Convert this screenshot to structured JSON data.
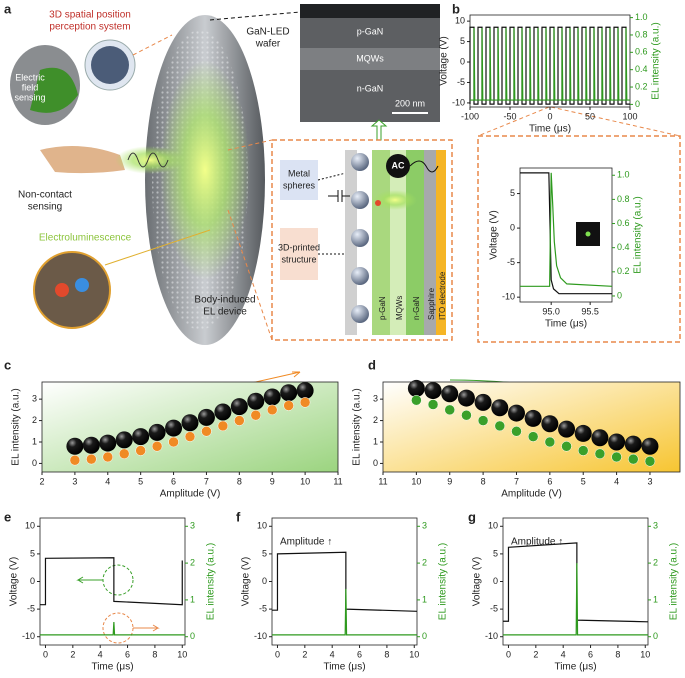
{
  "figure": {
    "panel_labels": [
      "a",
      "b",
      "c",
      "d",
      "e",
      "f",
      "g"
    ],
    "perception_title": [
      "3D spatial position",
      "perception system"
    ],
    "electric_field": [
      "Electric",
      "field",
      "sensing"
    ],
    "non_contact": [
      "Non-contact",
      "sensing"
    ],
    "electroluminescence": "Electroluminescence",
    "device": [
      "Body-induced",
      "EL device"
    ],
    "wafer": [
      "GaN-LED",
      "wafer"
    ],
    "sem_layers": [
      "p-GaN",
      "MQWs",
      "n-GaN"
    ],
    "scale_bar": "200 nm",
    "metal_spheres": [
      "Metal",
      "spheres"
    ],
    "printed_structure": [
      "3D-printed",
      "structure"
    ],
    "ac": "AC",
    "stack_layers": [
      "p-GaN",
      "MQWs",
      "n-GaN",
      "Sapphire",
      "ITO electrode"
    ]
  },
  "chart_data": [
    {
      "type": "line",
      "xlabel": "Time (μs)",
      "ylabel": "Voltage (V)",
      "y2label": "EL intensity (a.u.)",
      "xlim": [
        -100,
        100
      ],
      "xticks": [
        -100,
        -50,
        0,
        50,
        100
      ],
      "ylim": [
        -11,
        11.5
      ],
      "yticks": [
        -10,
        -5,
        0,
        5,
        10
      ],
      "y2lim": [
        -0.03,
        1.03
      ],
      "y2ticks": [
        0,
        0.2,
        0.4,
        0.6,
        0.8,
        {
          "value": 1,
          "label": "1.0"
        }
      ],
      "series": [
        {
          "color": "#111111",
          "x": [
            -100,
            -100,
            -95,
            -95,
            -90,
            -90,
            -85,
            -85,
            -80,
            -80,
            -75,
            -75,
            -70,
            -70,
            -65,
            -65,
            -60,
            -60,
            -55,
            -55,
            -50,
            -50,
            -45,
            -45,
            -40,
            -40,
            -35,
            -35,
            -30,
            -30,
            -25,
            -25,
            -20,
            -20,
            -15,
            -15,
            -10,
            -10,
            -5,
            -5,
            0,
            0,
            5,
            5,
            10,
            10,
            15,
            15,
            20,
            20,
            25,
            25,
            30,
            30,
            35,
            35,
            40,
            40,
            45,
            45,
            50,
            50,
            55,
            55,
            60,
            60,
            65,
            65,
            70,
            70,
            75,
            75,
            80,
            80,
            85,
            85,
            90,
            90,
            95,
            95,
            100
          ],
          "values": [
            -10.3,
            8.5,
            8.5,
            -10.3,
            -10.3,
            8.5,
            8.5,
            -10.3,
            -10.3,
            8.5,
            8.5,
            -10.3,
            -10.3,
            8.5,
            8.5,
            -10.3,
            -10.3,
            8.5,
            8.5,
            -10.3,
            -10.3,
            8.5,
            8.5,
            -10.3,
            -10.3,
            8.5,
            8.5,
            -10.3,
            -10.3,
            8.5,
            8.5,
            -10.3,
            -10.3,
            8.5,
            8.5,
            -10.3,
            -10.3,
            8.5,
            8.5,
            -10.3,
            -10.3,
            8.5,
            8.5,
            -10.3,
            -10.3,
            8.5,
            8.5,
            -10.3,
            -10.3,
            8.5,
            8.5,
            -10.3,
            -10.3,
            8.5,
            8.5,
            -10.3,
            -10.3,
            8.5,
            8.5,
            -10.3,
            -10.3,
            8.5,
            8.5,
            -10.3,
            -10.3,
            8.5,
            8.5,
            -10.3,
            -10.3,
            8.5,
            8.5,
            -10.3,
            -10.3,
            8.5,
            8.5,
            -10.3,
            -10.3,
            8.5,
            8.5,
            -10.3,
            -10.3
          ]
        },
        {
          "color": "#2e9a1e",
          "axis": "y2",
          "x": [
            -100,
            -95,
            -95,
            -94,
            -85,
            -85,
            -84,
            -75,
            -75,
            -74,
            -65,
            -65,
            -64,
            -55,
            -55,
            -54,
            -45,
            -45,
            -44,
            -35,
            -35,
            -34,
            -25,
            -25,
            -24,
            -15,
            -15,
            -14,
            -5,
            -5,
            -4,
            5,
            5,
            6,
            15,
            15,
            16,
            25,
            25,
            26,
            35,
            35,
            36,
            45,
            45,
            46,
            55,
            55,
            56,
            65,
            65,
            66,
            75,
            75,
            76,
            85,
            85,
            86,
            95,
            95,
            96,
            100
          ],
          "values": [
            0.05,
            0.05,
            0.88,
            0.05,
            0.05,
            0.88,
            0.05,
            0.05,
            0.88,
            0.05,
            0.05,
            0.88,
            0.05,
            0.05,
            0.88,
            0.05,
            0.05,
            0.88,
            0.05,
            0.05,
            0.88,
            0.05,
            0.05,
            0.88,
            0.05,
            0.05,
            0.88,
            0.05,
            0.05,
            0.88,
            0.05,
            0.05,
            0.88,
            0.05,
            0.05,
            0.88,
            0.05,
            0.05,
            0.88,
            0.05,
            0.05,
            0.88,
            0.05,
            0.05,
            0.88,
            0.05,
            0.05,
            0.88,
            0.05,
            0.05,
            0.88,
            0.05,
            0.05,
            0.88,
            0.05,
            0.05,
            0.88,
            0.05,
            0.05,
            0.88,
            0.05,
            0.05
          ]
        }
      ]
    },
    {
      "type": "line",
      "xlabel": "Time (μs)",
      "ylabel": "Voltage (V)",
      "y2label": "EL intensity (a.u.)",
      "xlim": [
        94.6,
        95.78
      ],
      "xticks": [
        {
          "value": 95,
          "label": "95.0"
        },
        95.5
      ],
      "ylim": [
        -10.7,
        8.7
      ],
      "yticks": [
        -10,
        -5,
        0,
        5
      ],
      "y2lim": [
        -0.05,
        1.06
      ],
      "y2ticks": [
        0,
        0.2,
        0.4,
        0.6,
        0.8,
        {
          "value": 1,
          "label": "1.0"
        }
      ],
      "series": [
        {
          "color": "#111111",
          "x": [
            94.6,
            94.97,
            95.0,
            95.03,
            95.1,
            95.78
          ],
          "values": [
            8.0,
            8.0,
            -7.5,
            -8.8,
            -9.5,
            -9.5
          ]
        },
        {
          "color": "#2e9a1e",
          "axis": "y2",
          "x": [
            94.6,
            94.98,
            95.0,
            95.02,
            95.04,
            95.07,
            95.12,
            95.2,
            95.78
          ],
          "values": [
            0.08,
            0.08,
            1.02,
            0.75,
            0.45,
            0.25,
            0.15,
            0.1,
            0.08
          ]
        }
      ]
    },
    {
      "type": "scatter",
      "xlabel": "Amplitude (V)",
      "ylabel": "EL intensity (a.u.)",
      "background": "#9bd47f",
      "xlim": [
        2,
        11
      ],
      "xticks": [
        2,
        3,
        4,
        5,
        6,
        7,
        8,
        9,
        10,
        11
      ],
      "ylim": [
        -0.4,
        3.8
      ],
      "yticks": [
        0,
        1,
        2,
        3
      ],
      "x": [
        3,
        3.5,
        4,
        4.5,
        5,
        5.5,
        6,
        6.5,
        7,
        7.5,
        8,
        8.5,
        9,
        9.5,
        10
      ],
      "series": [
        {
          "color": "#111111",
          "marker": "sphere",
          "values": [
            0.8,
            0.85,
            0.95,
            1.1,
            1.25,
            1.45,
            1.65,
            1.9,
            2.15,
            2.4,
            2.65,
            2.9,
            3.1,
            3.3,
            3.4
          ]
        },
        {
          "color": "#f08a24",
          "marker": "dot",
          "values": [
            0.15,
            0.2,
            0.3,
            0.45,
            0.6,
            0.8,
            1.0,
            1.25,
            1.5,
            1.75,
            2.0,
            2.25,
            2.5,
            2.7,
            2.85
          ]
        }
      ]
    },
    {
      "type": "scatter",
      "xlabel": "Amplitude (V)",
      "ylabel": "EL intensity (a.u.)",
      "background": "#f7c531",
      "xlim": [
        11,
        2.1
      ],
      "xticks": [
        11,
        10,
        9,
        8,
        7,
        6,
        5,
        4,
        3
      ],
      "ylim": [
        -0.4,
        3.8
      ],
      "yticks": [
        0,
        1,
        2,
        3
      ],
      "x": [
        10,
        9.5,
        9,
        8.5,
        8,
        7.5,
        7,
        6.5,
        6,
        5.5,
        5,
        4.5,
        4,
        3.5,
        3
      ],
      "series": [
        {
          "color": "#111111",
          "marker": "sphere",
          "values": [
            3.5,
            3.4,
            3.25,
            3.05,
            2.85,
            2.6,
            2.35,
            2.1,
            1.85,
            1.6,
            1.4,
            1.2,
            1.0,
            0.9,
            0.8
          ]
        },
        {
          "color": "#3aa02a",
          "marker": "dot",
          "values": [
            2.95,
            2.75,
            2.5,
            2.25,
            2.0,
            1.75,
            1.5,
            1.25,
            1.0,
            0.8,
            0.6,
            0.45,
            0.3,
            0.2,
            0.1
          ]
        }
      ]
    },
    {
      "type": "line",
      "xlabel": "Time (μs)",
      "ylabel": "Voltage (V)",
      "y2label": "EL intensity (a.u.)",
      "xlim": [
        -0.4,
        10.2
      ],
      "xticks": [
        0,
        2,
        4,
        6,
        8,
        10
      ],
      "ylim": [
        -11.5,
        11.5
      ],
      "yticks": [
        -10,
        -5,
        0,
        5,
        10
      ],
      "y2lim": [
        -0.225,
        3.225
      ],
      "y2ticks": [
        0,
        1,
        2,
        3
      ],
      "series": [
        {
          "color": "#111111",
          "x": [
            -0.4,
            0,
            0,
            5,
            5,
            10,
            10
          ],
          "values": [
            -4.2,
            -4.2,
            4.2,
            4.3,
            -3.6,
            -4.2,
            3.8
          ]
        },
        {
          "color": "#2e9a1e",
          "axis": "y2",
          "x": [
            -0.4,
            4.95,
            5,
            5.05,
            10.2
          ],
          "values": [
            0.05,
            0.05,
            0.4,
            0.05,
            0.05
          ]
        }
      ]
    },
    {
      "type": "line",
      "xlabel": "Time (μs)",
      "ylabel": "Voltage (V)",
      "y2label": "EL intensity (a.u.)",
      "annotation": "Amplitude ↑",
      "xlim": [
        -0.4,
        10.2
      ],
      "xticks": [
        0,
        2,
        4,
        6,
        8,
        10
      ],
      "ylim": [
        -11.5,
        11.5
      ],
      "yticks": [
        -10,
        -5,
        0,
        5,
        10
      ],
      "y2lim": [
        -0.225,
        3.225
      ],
      "y2ticks": [
        0,
        1,
        2,
        3
      ],
      "series": [
        {
          "color": "#111111",
          "x": [
            -0.4,
            0,
            0,
            5,
            5,
            10.2
          ],
          "values": [
            -5.2,
            -5.2,
            5,
            5.3,
            -5,
            -5.4
          ]
        },
        {
          "color": "#2e9a1e",
          "axis": "y2",
          "x": [
            -0.4,
            4.95,
            5,
            5.05,
            10.2
          ],
          "values": [
            0.05,
            0.05,
            1.3,
            0.05,
            0.05
          ]
        }
      ]
    },
    {
      "type": "line",
      "xlabel": "Time (μs)",
      "ylabel": "Voltage (V)",
      "y2label": "EL intensity (a.u.)",
      "annotation": "Amplitude ↑",
      "xlim": [
        -0.4,
        10.2
      ],
      "xticks": [
        0,
        2,
        4,
        6,
        8,
        10
      ],
      "ylim": [
        -11.5,
        11.5
      ],
      "yticks": [
        -10,
        -5,
        0,
        5,
        10
      ],
      "y2lim": [
        -0.225,
        3.225
      ],
      "y2ticks": [
        0,
        1,
        2,
        3
      ],
      "series": [
        {
          "color": "#111111",
          "x": [
            -0.4,
            0,
            0,
            5,
            5,
            10.2
          ],
          "values": [
            -7.2,
            -7.2,
            6.2,
            7,
            -7,
            -7.3
          ]
        },
        {
          "color": "#2e9a1e",
          "axis": "y2",
          "x": [
            -0.4,
            4.95,
            5,
            5.05,
            10.2
          ],
          "values": [
            0.05,
            0.05,
            2.0,
            0.05,
            0.05
          ]
        }
      ]
    }
  ]
}
